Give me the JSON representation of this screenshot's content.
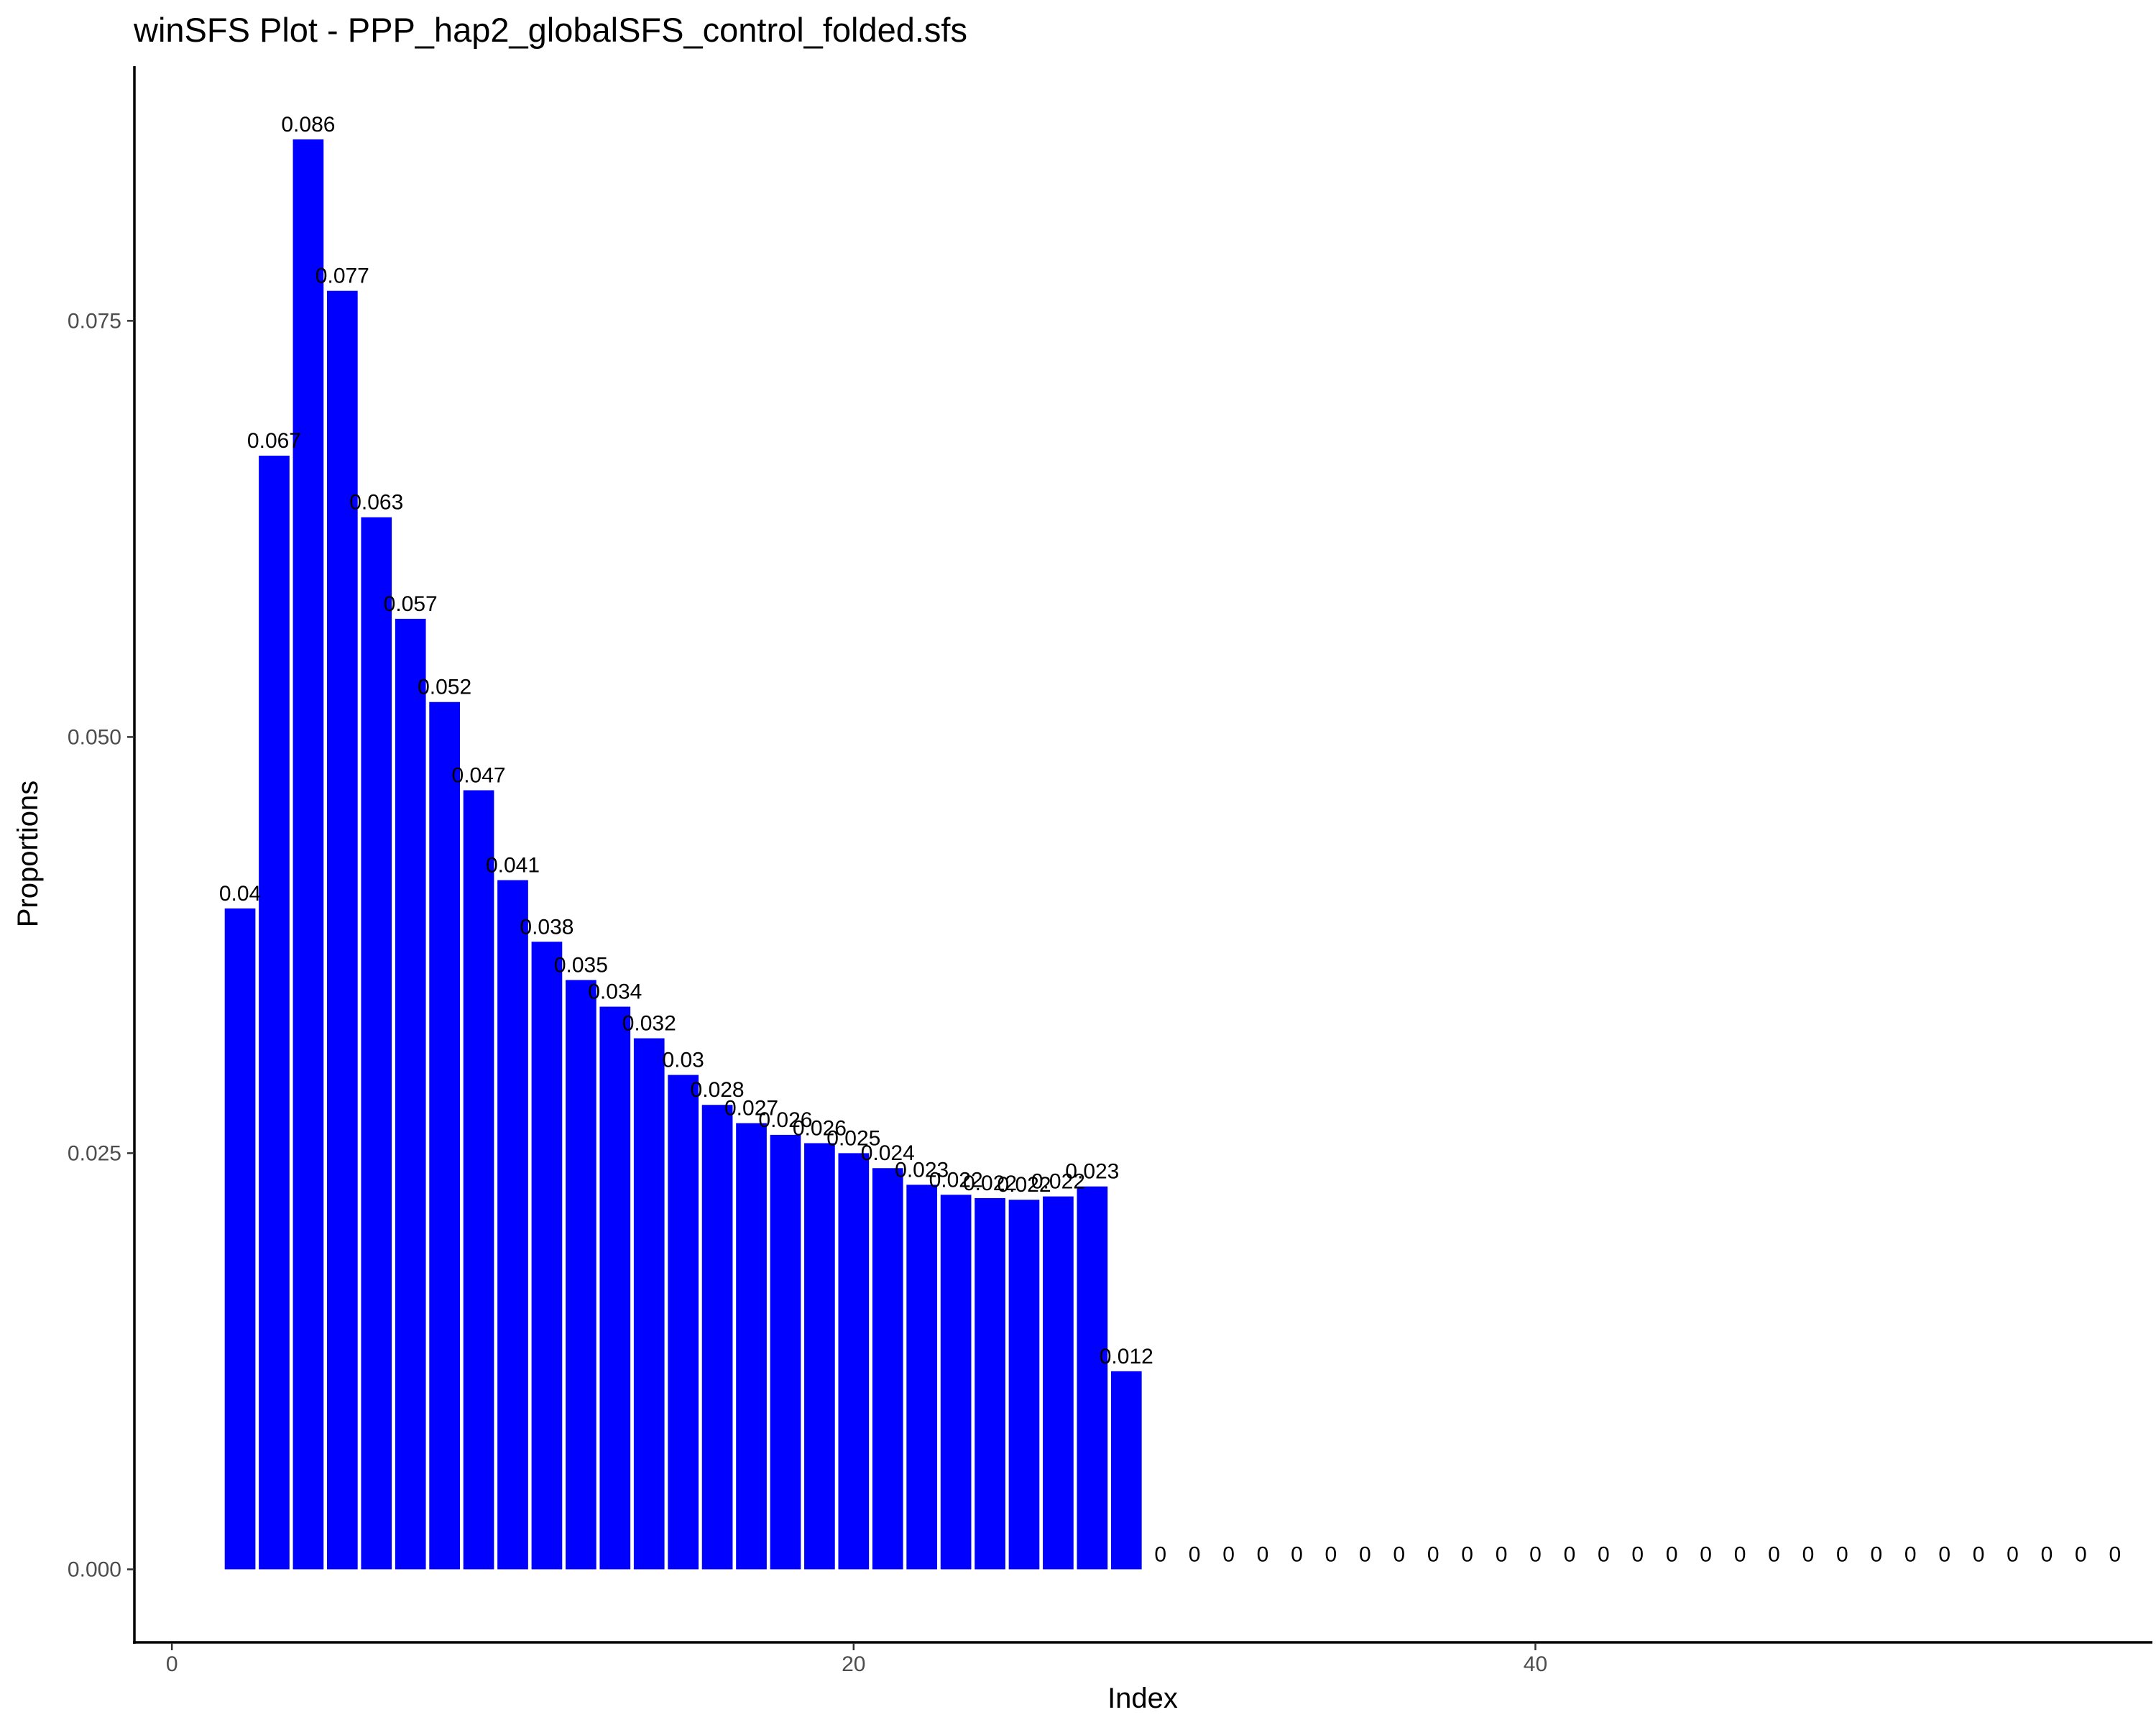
{
  "chart_data": {
    "type": "bar",
    "title": "winSFS Plot - PPP_hap2_globalSFS_control_folded.sfs",
    "xlabel": "Index",
    "ylabel": "Proportions",
    "bar_color": "#0000ff",
    "x_ticks": [
      0,
      20,
      40
    ],
    "x_tick_labels": [
      "0",
      "20",
      "40"
    ],
    "y_ticks": [
      0,
      0.025,
      0.05,
      0.075
    ],
    "y_tick_labels": [
      "0.000",
      "0.025",
      "0.050",
      "0.075"
    ],
    "xlim": [
      -1.1,
      58.1
    ],
    "ylim": [
      -0.0043,
      0.0903
    ],
    "grid": false,
    "legend": "none",
    "x": [
      2,
      3,
      4,
      5,
      6,
      7,
      8,
      9,
      10,
      11,
      12,
      13,
      14,
      15,
      16,
      17,
      18,
      19,
      20,
      21,
      22,
      23,
      24,
      25,
      26,
      27,
      28,
      29,
      30,
      31,
      32,
      33,
      34,
      35,
      36,
      37,
      38,
      39,
      40,
      41,
      42,
      43,
      44,
      45,
      46,
      47,
      48,
      49,
      50,
      51,
      52,
      53,
      54,
      55,
      56,
      57
    ],
    "values": [
      0.0397,
      0.0669,
      0.0859,
      0.0768,
      0.0632,
      0.0571,
      0.0521,
      0.0468,
      0.0414,
      0.0377,
      0.0354,
      0.0338,
      0.0319,
      0.0297,
      0.0279,
      0.0268,
      0.0261,
      0.0256,
      0.025,
      0.0241,
      0.0231,
      0.0225,
      0.0223,
      0.0222,
      0.0224,
      0.023,
      0.0119,
      0,
      0,
      0,
      0,
      0,
      0,
      0,
      0,
      0,
      0,
      0,
      0,
      0,
      0,
      0,
      0,
      0,
      0,
      0,
      0,
      0,
      0,
      0,
      0,
      0,
      0,
      0,
      0,
      0
    ],
    "labels": [
      "0.04",
      "0.067",
      "0.086",
      "0.077",
      "0.063",
      "0.057",
      "0.052",
      "0.047",
      "0.041",
      "0.038",
      "0.035",
      "0.034",
      "0.032",
      "0.03",
      "0.028",
      "0.027",
      "0.026",
      "0.026",
      "0.025",
      "0.024",
      "0.023",
      "0.022",
      "0.022",
      "0.022",
      "0.022",
      "0.023",
      "0.012",
      "0",
      "0",
      "0",
      "0",
      "0",
      "0",
      "0",
      "0",
      "0",
      "0",
      "0",
      "0",
      "0",
      "0",
      "0",
      "0",
      "0",
      "0",
      "0",
      "0",
      "0",
      "0",
      "0",
      "0",
      "0",
      "0",
      "0",
      "0",
      "0"
    ]
  }
}
